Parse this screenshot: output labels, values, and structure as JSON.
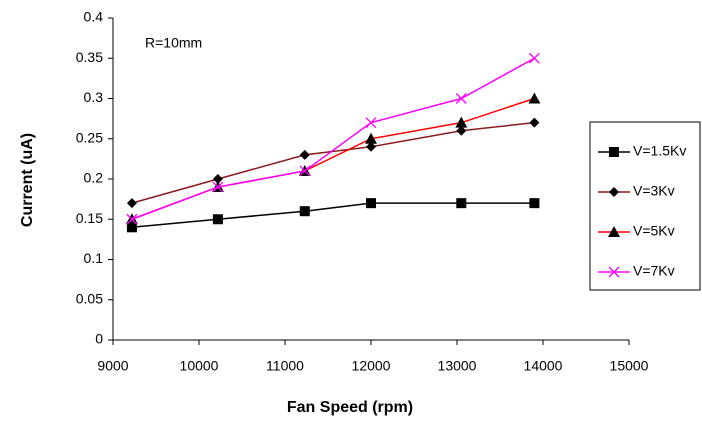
{
  "chart_data": {
    "type": "line",
    "annotation": "R=10mm",
    "x_label": "Fan Speed (rpm)",
    "y_label": "Current (uA)",
    "xlim": [
      9000,
      15000
    ],
    "xticks": [
      9000,
      10000,
      11000,
      12000,
      13000,
      14000,
      15000
    ],
    "ylim": [
      0,
      0.4
    ],
    "yticks": [
      0,
      0.05,
      0.1,
      0.15,
      0.2,
      0.25,
      0.3,
      0.35,
      0.4
    ],
    "grid": false,
    "legend": "right",
    "x": [
      9220,
      10220,
      11230,
      12000,
      13050,
      13900
    ],
    "series": [
      {
        "name": "V=1.5Kv",
        "color": "#000000",
        "marker": "square",
        "marker_color": "#000000",
        "values": [
          0.14,
          0.15,
          0.16,
          0.17,
          0.17,
          0.17
        ]
      },
      {
        "name": "V=3Kv",
        "color": "#8b1a1a",
        "marker": "diamond",
        "marker_color": "#000000",
        "values": [
          0.17,
          0.2,
          0.23,
          0.24,
          0.26,
          0.27
        ]
      },
      {
        "name": "V=5Kv",
        "color": "#ff0000",
        "marker": "triangle",
        "marker_color": "#000000",
        "values": [
          0.15,
          0.19,
          0.21,
          0.25,
          0.27,
          0.3
        ]
      },
      {
        "name": "V=7Kv",
        "color": "#ff00ff",
        "marker": "cross",
        "marker_color": "#ff00ff",
        "values": [
          0.15,
          0.19,
          0.21,
          0.27,
          0.3,
          0.35
        ]
      }
    ]
  }
}
